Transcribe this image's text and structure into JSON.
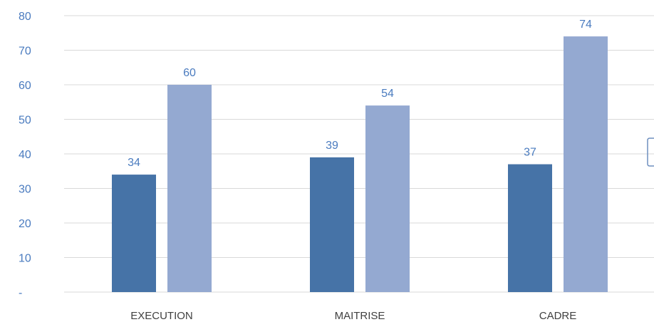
{
  "chart_data": {
    "type": "bar",
    "categories": [
      "EXECUTION",
      "MAITRISE",
      "CADRE"
    ],
    "series": [
      {
        "values": [
          34,
          39,
          37
        ],
        "color": "#4673a7"
      },
      {
        "values": [
          60,
          54,
          74
        ],
        "color": "#94a9d1"
      }
    ],
    "ylim": [
      0,
      80
    ],
    "yticks": [
      {
        "value": 0,
        "label": "-"
      },
      {
        "value": 10,
        "label": "10"
      },
      {
        "value": 20,
        "label": "20"
      },
      {
        "value": 30,
        "label": "30"
      },
      {
        "value": 40,
        "label": "40"
      },
      {
        "value": 50,
        "label": "50"
      },
      {
        "value": 60,
        "label": "60"
      },
      {
        "value": 70,
        "label": "70"
      },
      {
        "value": 80,
        "label": "80"
      }
    ],
    "grid": true,
    "label_color": "#4a7bbf"
  }
}
